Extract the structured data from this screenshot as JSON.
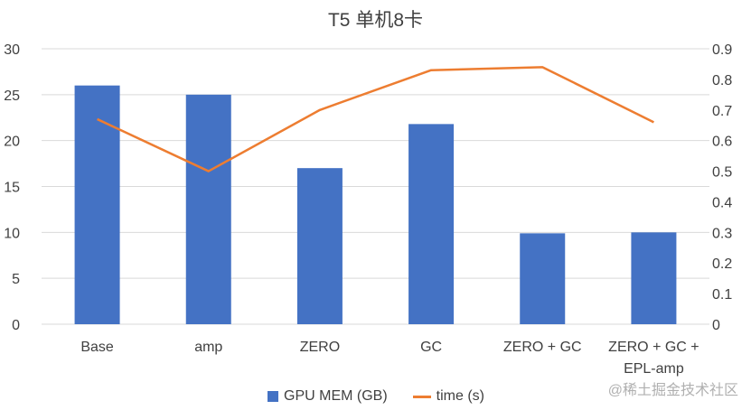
{
  "chart_data": {
    "type": "bar",
    "title": "T5 单机8卡",
    "categories": [
      "Base",
      "amp",
      "ZERO",
      "GC",
      "ZERO + GC",
      "ZERO + GC +\nEPL-amp"
    ],
    "series": [
      {
        "name": "GPU MEM (GB)",
        "type": "bar",
        "axis": "left",
        "values": [
          26,
          25,
          17,
          21.8,
          9.9,
          10
        ]
      },
      {
        "name": "time (s)",
        "type": "line",
        "axis": "right",
        "values": [
          0.67,
          0.5,
          0.7,
          0.83,
          0.84,
          0.66
        ]
      }
    ],
    "ylim": [
      0,
      30
    ],
    "y_ticks": [
      0,
      5,
      10,
      15,
      20,
      25,
      30
    ],
    "y2lim": [
      0,
      0.9
    ],
    "y2_ticks": [
      "0",
      "0.1",
      "0.2",
      "0.3",
      "0.4",
      "0.5",
      "0.6",
      "0.7",
      "0.8",
      "0.9"
    ],
    "grid": true,
    "legend_position": "bottom",
    "colors": {
      "bar": "#4472c4",
      "line": "#ed7d31",
      "grid": "#d9d9d9",
      "text": "#404040"
    }
  },
  "watermark": "@稀土掘金技术社区"
}
